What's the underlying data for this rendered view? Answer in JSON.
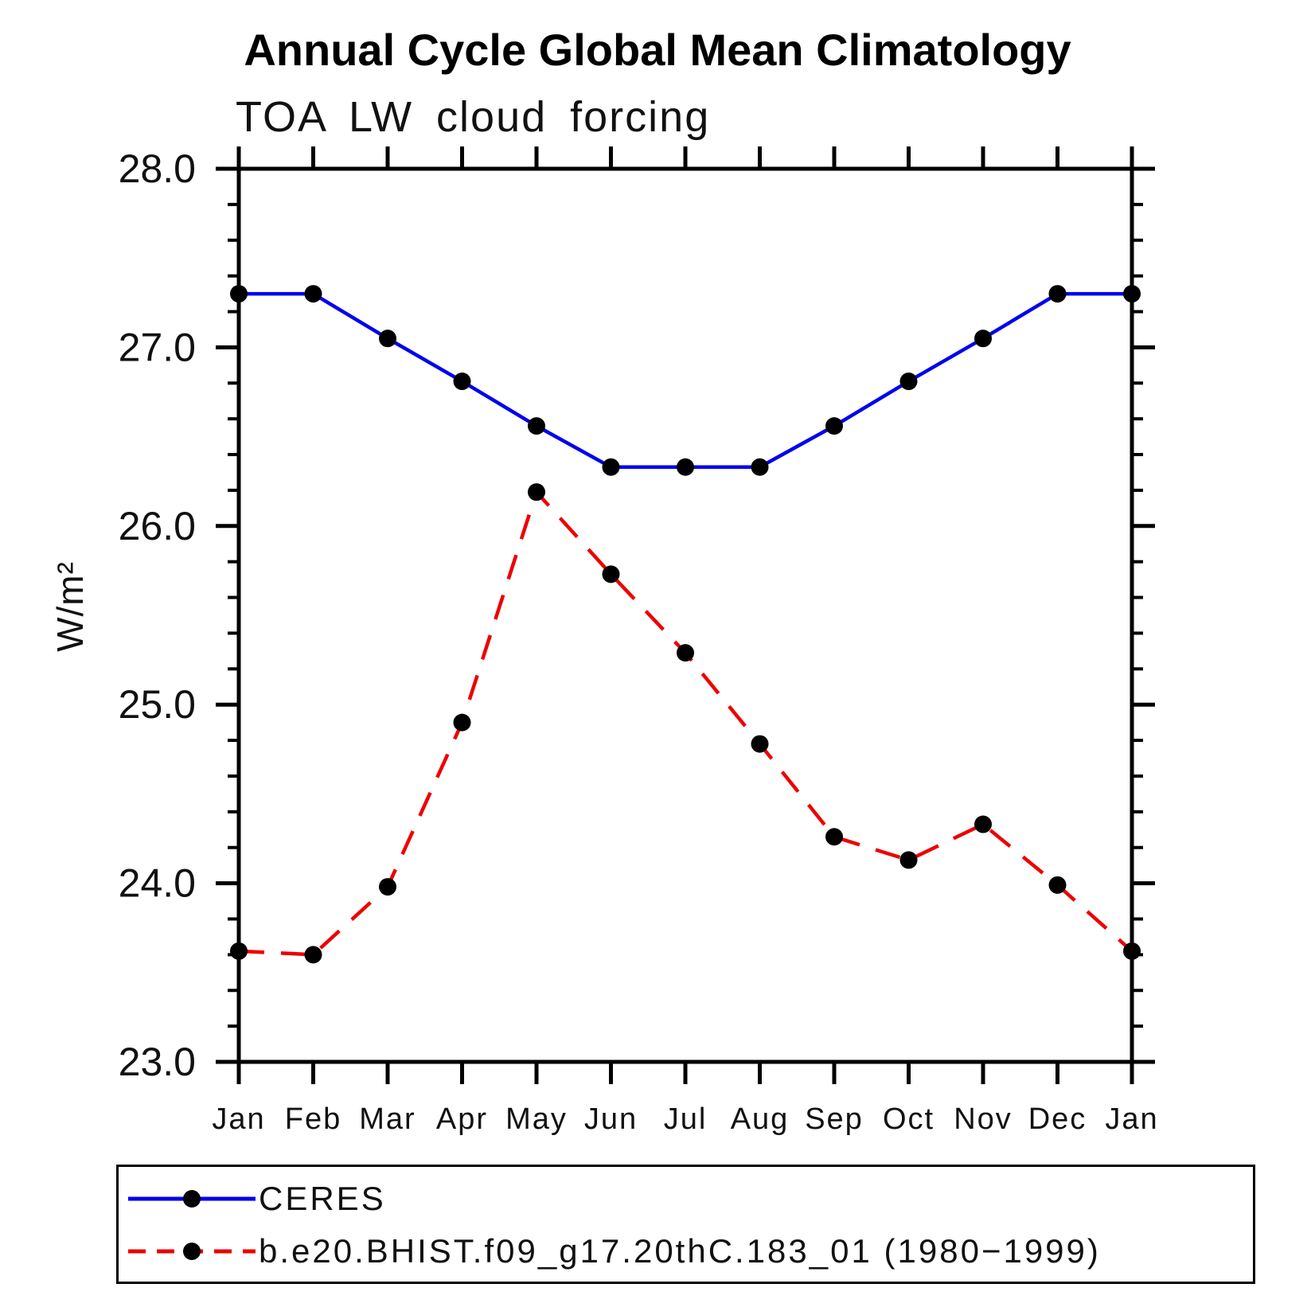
{
  "header": {
    "title": "Annual Cycle Global Mean Climatology",
    "subtitle": "TOA LW cloud forcing"
  },
  "y_axis": {
    "label": "W/m²",
    "tick_labels": [
      "23.0",
      "24.0",
      "25.0",
      "26.0",
      "27.0",
      "28.0"
    ]
  },
  "chart_data": {
    "type": "line",
    "title": "Annual Cycle Global Mean Climatology",
    "subtitle": "TOA LW cloud forcing",
    "xlabel": "",
    "ylabel": "W/m²",
    "categories": [
      "Jan",
      "Feb",
      "Mar",
      "Apr",
      "May",
      "Jun",
      "Jul",
      "Aug",
      "Sep",
      "Oct",
      "Nov",
      "Dec",
      "Jan"
    ],
    "ylim": [
      23.0,
      28.0
    ],
    "ytick_major": 1.0,
    "ytick_minor": 0.2,
    "grid": false,
    "legend_position": "bottom-left-box",
    "series": [
      {
        "name": "CERES",
        "color": "#0000ee",
        "line_style": "solid",
        "marker": "black-circle",
        "values": [
          27.3,
          27.3,
          27.05,
          26.81,
          26.56,
          26.33,
          26.33,
          26.33,
          26.56,
          26.81,
          27.05,
          27.3,
          27.3
        ]
      },
      {
        "name": "b.e20.BHIST.f09_g17.20thC.183_01 (1980−1999)",
        "color": "#ee0000",
        "line_style": "dashed",
        "marker": "black-circle",
        "values": [
          23.62,
          23.6,
          23.98,
          24.9,
          26.19,
          25.73,
          25.29,
          24.78,
          24.26,
          24.13,
          24.33,
          23.99,
          23.62
        ]
      }
    ]
  },
  "colors": {
    "axis": "#000000",
    "marker": "#000000",
    "ceres_line": "#0000ee",
    "model_line": "#ee0000",
    "background": "#ffffff"
  }
}
